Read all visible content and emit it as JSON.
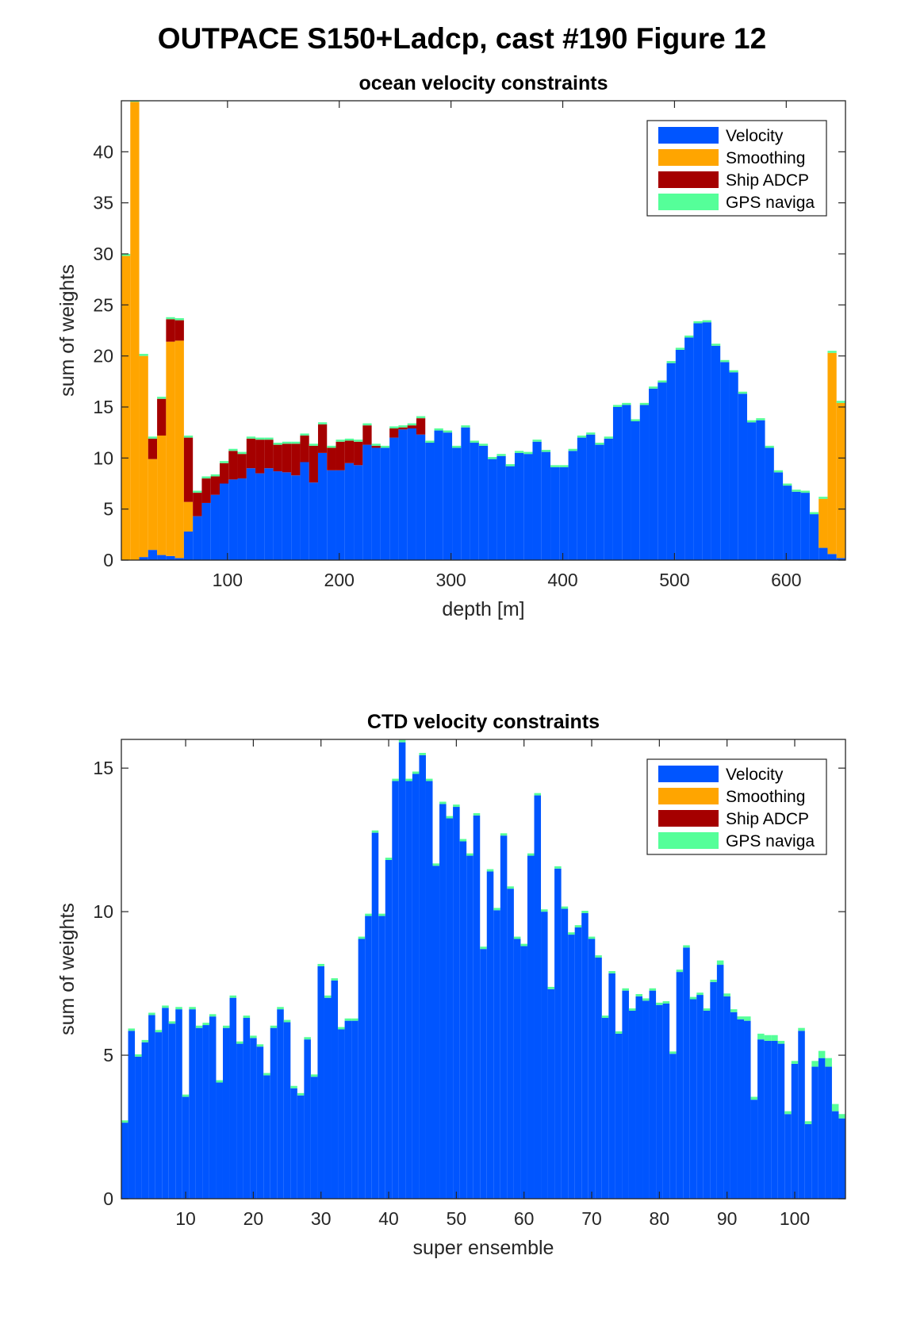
{
  "figure_title": "OUTPACE S150+Ladcp, cast #190  Figure 12",
  "colors": {
    "Velocity": "#0055ff",
    "Smoothing": "#ffa500",
    "Ship ADCP": "#a50000",
    "GPS naviga": "#55ff99"
  },
  "chart_data": [
    {
      "type": "bar",
      "stacked": true,
      "title": "ocean velocity constraints",
      "xlabel": "depth [m]",
      "ylabel": "sum of weights",
      "xlim": [
        5,
        653
      ],
      "ylim": [
        0,
        45
      ],
      "xticks": [
        100,
        200,
        300,
        400,
        500,
        600
      ],
      "yticks": [
        0,
        5,
        10,
        15,
        20,
        25,
        30,
        35,
        40
      ],
      "legend_position": "top-right",
      "legend": [
        "Velocity",
        "Smoothing",
        "Ship ADCP",
        "GPS naviga"
      ],
      "bin_width": 8,
      "x": [
        9,
        17,
        25,
        33,
        41,
        49,
        57,
        65,
        73,
        81,
        89,
        97,
        105,
        113,
        121,
        129,
        137,
        145,
        153,
        161,
        169,
        177,
        185,
        193,
        201,
        209,
        217,
        225,
        233,
        241,
        249,
        257,
        265,
        273,
        281,
        289,
        297,
        305,
        313,
        321,
        329,
        337,
        345,
        353,
        361,
        369,
        377,
        385,
        393,
        401,
        409,
        417,
        425,
        433,
        441,
        449,
        457,
        465,
        473,
        481,
        489,
        497,
        505,
        513,
        521,
        529,
        537,
        545,
        553,
        561,
        569,
        577,
        585,
        593,
        601,
        609,
        617,
        625,
        633,
        641,
        649
      ],
      "series": [
        {
          "name": "Velocity",
          "values": [
            0,
            0,
            0.3,
            1,
            0.5,
            0.4,
            0.2,
            2.8,
            4.3,
            5.6,
            6.4,
            7.5,
            7.9,
            8,
            9,
            8.5,
            9,
            8.7,
            8.6,
            8.3,
            9.6,
            7.6,
            10.5,
            8.8,
            8.8,
            9.5,
            9.3,
            11.3,
            11,
            11,
            12,
            12.8,
            12.9,
            12.3,
            11.5,
            12.7,
            12.5,
            11,
            13,
            11.5,
            11.2,
            9.9,
            10.2,
            9.2,
            10.5,
            10.4,
            11.6,
            10.6,
            9.1,
            9.1,
            10.7,
            12,
            12.3,
            11.3,
            11.9,
            15,
            15.2,
            13.6,
            15.2,
            16.8,
            17.4,
            19.3,
            20.6,
            21.8,
            23.2,
            23.3,
            21,
            19.4,
            18.4,
            16.3,
            13.5,
            13.7,
            11,
            8.6,
            7.3,
            6.7,
            6.6,
            4.5,
            1.2,
            0.6,
            0.2
          ]
        },
        {
          "name": "Smoothing",
          "values": [
            29.8,
            44.9,
            19.7,
            8.9,
            11.7,
            21,
            21.3,
            2.9,
            0,
            0,
            0,
            0,
            0,
            0,
            0,
            0,
            0,
            0,
            0,
            0,
            0,
            0,
            0,
            0,
            0,
            0,
            0,
            0,
            0,
            0,
            0,
            0,
            0,
            0,
            0,
            0,
            0,
            0,
            0,
            0,
            0,
            0,
            0,
            0,
            0,
            0,
            0,
            0,
            0,
            0,
            0,
            0,
            0,
            0,
            0,
            0,
            0,
            0,
            0,
            0,
            0,
            0,
            0,
            0,
            0,
            0,
            0,
            0,
            0,
            0,
            0,
            0,
            0,
            0,
            0,
            0,
            0,
            0,
            4.8,
            19.7,
            15.2
          ]
        },
        {
          "name": "Ship ADCP",
          "values": [
            0,
            0,
            0,
            2,
            3.6,
            2.2,
            2,
            6.3,
            2.3,
            2.4,
            1.8,
            2,
            2.8,
            2.4,
            2.9,
            3.3,
            2.8,
            2.6,
            2.8,
            3.1,
            2.6,
            3.6,
            2.8,
            2.2,
            2.8,
            2.2,
            2.3,
            1.9,
            0.2,
            0,
            0.9,
            0.2,
            0.3,
            1.6,
            0,
            0,
            0,
            0,
            0,
            0,
            0,
            0,
            0,
            0,
            0,
            0,
            0,
            0,
            0,
            0,
            0,
            0,
            0,
            0,
            0,
            0,
            0,
            0,
            0,
            0,
            0,
            0,
            0,
            0,
            0,
            0,
            0,
            0,
            0,
            0,
            0,
            0,
            0,
            0,
            0,
            0,
            0,
            0,
            0,
            0,
            0
          ]
        },
        {
          "name": "GPS naviga",
          "values": [
            0.2,
            0.2,
            0.2,
            0.2,
            0.2,
            0.2,
            0.2,
            0.2,
            0.2,
            0.2,
            0.2,
            0.2,
            0.2,
            0.2,
            0.2,
            0.2,
            0.2,
            0.2,
            0.2,
            0.2,
            0.2,
            0.2,
            0.2,
            0.2,
            0.2,
            0.2,
            0.2,
            0.2,
            0.2,
            0.2,
            0.2,
            0.2,
            0.2,
            0.2,
            0.2,
            0.2,
            0.2,
            0.2,
            0.2,
            0.2,
            0.2,
            0.2,
            0.2,
            0.2,
            0.2,
            0.2,
            0.2,
            0.2,
            0.2,
            0.2,
            0.2,
            0.2,
            0.2,
            0.2,
            0.2,
            0.2,
            0.2,
            0.2,
            0.2,
            0.2,
            0.2,
            0.2,
            0.2,
            0.2,
            0.2,
            0.2,
            0.2,
            0.2,
            0.2,
            0.2,
            0.2,
            0.2,
            0.2,
            0.2,
            0.2,
            0.2,
            0.2,
            0.2,
            0.2,
            0.2,
            0.2
          ]
        }
      ]
    },
    {
      "type": "bar",
      "stacked": true,
      "title": "CTD velocity constraints",
      "xlabel": "super ensemble",
      "ylabel": "sum of weights",
      "xlim": [
        0.5,
        107.5
      ],
      "ylim": [
        0,
        16
      ],
      "xticks": [
        10,
        20,
        30,
        40,
        50,
        60,
        70,
        80,
        90,
        100
      ],
      "yticks": [
        0,
        5,
        10,
        15
      ],
      "legend_position": "top-right",
      "legend": [
        "Velocity",
        "Smoothing",
        "Ship ADCP",
        "GPS naviga"
      ],
      "bin_width": 1,
      "x": [
        1,
        2,
        3,
        4,
        5,
        6,
        7,
        8,
        9,
        10,
        11,
        12,
        13,
        14,
        15,
        16,
        17,
        18,
        19,
        20,
        21,
        22,
        23,
        24,
        25,
        26,
        27,
        28,
        29,
        30,
        31,
        32,
        33,
        34,
        35,
        36,
        37,
        38,
        39,
        40,
        41,
        42,
        43,
        44,
        45,
        46,
        47,
        48,
        49,
        50,
        51,
        52,
        53,
        54,
        55,
        56,
        57,
        58,
        59,
        60,
        61,
        62,
        63,
        64,
        65,
        66,
        67,
        68,
        69,
        70,
        71,
        72,
        73,
        74,
        75,
        76,
        77,
        78,
        79,
        80,
        81,
        82,
        83,
        84,
        85,
        86,
        87,
        88,
        89,
        90,
        91,
        92,
        93,
        94,
        95,
        96,
        97,
        98,
        99,
        100,
        101,
        102,
        103,
        104,
        105,
        106,
        107
      ],
      "series": [
        {
          "name": "Velocity",
          "values": [
            2.65,
            5.85,
            4.95,
            5.45,
            6.4,
            5.8,
            6.65,
            6.1,
            6.6,
            3.55,
            6.6,
            5.95,
            6.05,
            6.35,
            4.05,
            5.95,
            7,
            5.4,
            6.3,
            5.6,
            5.3,
            4.3,
            5.95,
            6.6,
            6.15,
            3.85,
            3.6,
            5.55,
            4.25,
            8.1,
            7,
            7.6,
            5.9,
            6.2,
            6.2,
            9.05,
            9.85,
            12.75,
            9.85,
            11.8,
            14.55,
            15.9,
            14.55,
            14.8,
            15.45,
            14.55,
            11.6,
            13.75,
            13.25,
            13.65,
            12.45,
            11.95,
            13.35,
            8.7,
            11.4,
            10.05,
            12.65,
            10.8,
            9.05,
            8.8,
            11.95,
            14.05,
            10,
            7.3,
            11.5,
            10.1,
            9.2,
            9.45,
            9.95,
            9.05,
            8.4,
            6.3,
            7.85,
            5.75,
            7.25,
            6.55,
            7.05,
            6.9,
            7.25,
            6.75,
            6.8,
            5.05,
            7.9,
            8.75,
            6.95,
            7.1,
            6.55,
            7.55,
            8.15,
            7.05,
            6.5,
            6.25,
            6.2,
            3.45,
            5.55,
            5.5,
            5.5,
            5.4,
            2.95,
            4.7,
            5.85,
            2.6,
            4.6,
            4.9,
            4.6,
            3.05,
            2.8
          ]
        },
        {
          "name": "Smoothing",
          "values": [
            0,
            0,
            0,
            0,
            0,
            0,
            0,
            0,
            0,
            0,
            0,
            0,
            0,
            0,
            0,
            0,
            0,
            0,
            0,
            0,
            0,
            0,
            0,
            0,
            0,
            0,
            0,
            0,
            0,
            0,
            0,
            0,
            0,
            0,
            0,
            0,
            0,
            0,
            0,
            0,
            0,
            0,
            0,
            0,
            0,
            0,
            0,
            0,
            0,
            0,
            0,
            0,
            0,
            0,
            0,
            0,
            0,
            0,
            0,
            0,
            0,
            0,
            0,
            0,
            0,
            0,
            0,
            0,
            0,
            0,
            0,
            0,
            0,
            0,
            0,
            0,
            0,
            0,
            0,
            0,
            0,
            0,
            0,
            0,
            0,
            0,
            0,
            0,
            0,
            0,
            0,
            0,
            0,
            0,
            0,
            0,
            0,
            0,
            0,
            0,
            0,
            0,
            0,
            0,
            0,
            0,
            0
          ]
        },
        {
          "name": "Ship ADCP",
          "values": [
            0,
            0,
            0,
            0,
            0,
            0,
            0,
            0,
            0,
            0,
            0,
            0,
            0,
            0,
            0,
            0,
            0,
            0,
            0,
            0,
            0,
            0,
            0,
            0,
            0,
            0,
            0,
            0,
            0,
            0,
            0,
            0,
            0,
            0,
            0,
            0,
            0,
            0,
            0,
            0,
            0,
            0,
            0,
            0,
            0,
            0,
            0,
            0,
            0,
            0,
            0,
            0,
            0,
            0,
            0,
            0,
            0,
            0,
            0,
            0,
            0,
            0,
            0,
            0,
            0,
            0,
            0,
            0,
            0,
            0,
            0,
            0,
            0,
            0,
            0,
            0,
            0,
            0,
            0,
            0,
            0,
            0,
            0,
            0,
            0,
            0,
            0,
            0,
            0,
            0,
            0,
            0,
            0,
            0,
            0,
            0,
            0,
            0,
            0,
            0,
            0,
            0,
            0,
            0,
            0,
            0,
            0
          ]
        },
        {
          "name": "GPS naviga",
          "values": [
            0.08,
            0.08,
            0.08,
            0.08,
            0.08,
            0.08,
            0.08,
            0.08,
            0.08,
            0.08,
            0.08,
            0.08,
            0.08,
            0.08,
            0.08,
            0.08,
            0.08,
            0.08,
            0.08,
            0.08,
            0.08,
            0.08,
            0.08,
            0.08,
            0.08,
            0.08,
            0.08,
            0.08,
            0.08,
            0.08,
            0.08,
            0.08,
            0.08,
            0.08,
            0.08,
            0.08,
            0.08,
            0.08,
            0.08,
            0.08,
            0.08,
            0.08,
            0.08,
            0.08,
            0.08,
            0.08,
            0.08,
            0.08,
            0.08,
            0.08,
            0.08,
            0.08,
            0.08,
            0.08,
            0.08,
            0.08,
            0.08,
            0.08,
            0.08,
            0.08,
            0.08,
            0.08,
            0.08,
            0.08,
            0.08,
            0.08,
            0.08,
            0.08,
            0.08,
            0.08,
            0.08,
            0.08,
            0.08,
            0.08,
            0.08,
            0.08,
            0.08,
            0.08,
            0.08,
            0.08,
            0.08,
            0.08,
            0.08,
            0.08,
            0.08,
            0.08,
            0.08,
            0.08,
            0.15,
            0.1,
            0.1,
            0.1,
            0.15,
            0.1,
            0.2,
            0.2,
            0.2,
            0.1,
            0.1,
            0.1,
            0.1,
            0.1,
            0.2,
            0.25,
            0.3,
            0.25,
            0.15
          ]
        }
      ]
    }
  ]
}
